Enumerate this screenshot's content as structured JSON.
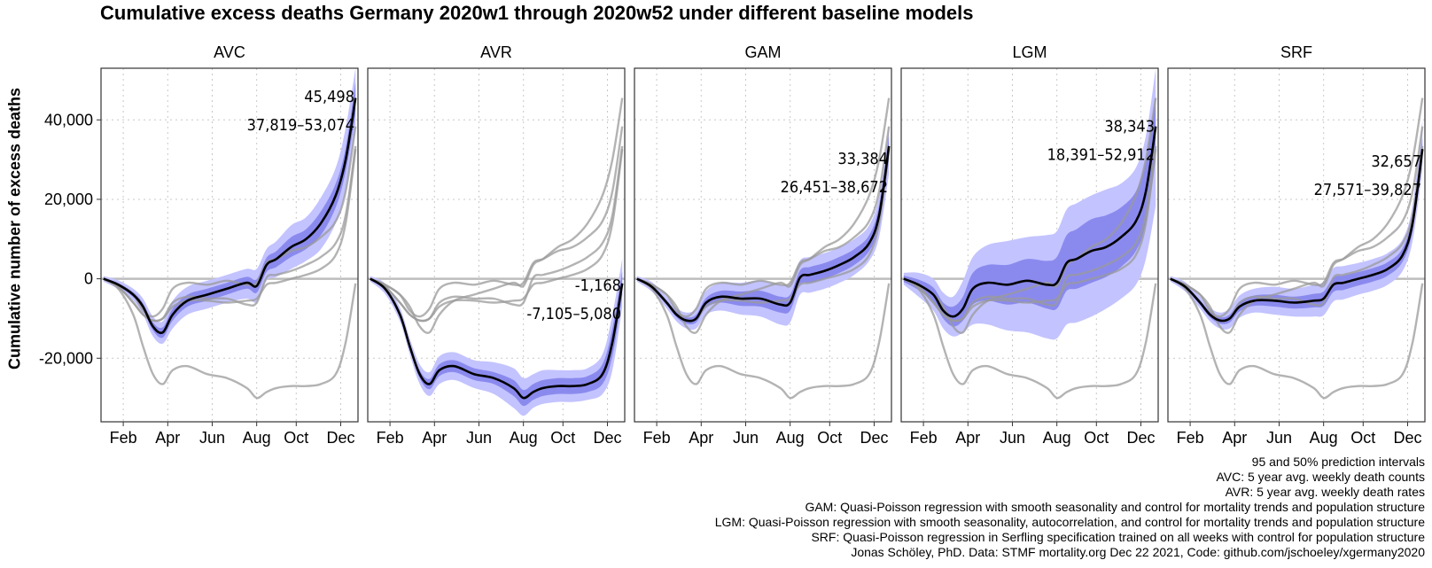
{
  "title": "Cumulative excess deaths Germany 2020w1 through 2020w52 under different baseline models",
  "ylabel": "Cumulative number of excess deaths",
  "caption": [
    "95 and 50% prediction intervals",
    "AVC: 5 year avg. weekly death counts",
    "AVR: 5 year avg. weekly death rates",
    "GAM: Quasi-Poisson regression with smooth seasonality and control for mortality trends and population structure",
    "LGM: Quasi-Poisson regression with smooth seasonality, autocorrelation, and control for mortality trends and population structure",
    "SRF: Quasi-Poisson regression in Serfling specification trained on all weeks with control for population structure",
    "Jonas Schöley, PhD. Data: STMF mortality.org Dec 22 2021, Code: github.com/jschoeley/xgermany2020"
  ],
  "colors": {
    "band95": "#c3c3ff",
    "band50": "#8a8aee",
    "main_line": "#000000",
    "other_lines": "#9a9a9a",
    "zero_line": "#bdbdbd",
    "grid": "#c8c8c8"
  },
  "chart_data": {
    "type": "line",
    "layout": "facets in one row, shared y axis",
    "x_unit": "week of 2020",
    "x_ticks": [
      {
        "label": "Feb",
        "week": 5
      },
      {
        "label": "Apr",
        "week": 14
      },
      {
        "label": "Jun",
        "week": 23
      },
      {
        "label": "Aug",
        "week": 32
      },
      {
        "label": "Oct",
        "week": 40
      },
      {
        "label": "Dec",
        "week": 49
      }
    ],
    "xlim": [
      0.5,
      52.5
    ],
    "ylim": [
      -36000,
      53000
    ],
    "y_ticks": [
      {
        "label": "40,000",
        "value": 40000
      },
      {
        "label": "20,000",
        "value": 20000
      },
      {
        "label": "0",
        "value": 0
      },
      {
        "label": "-20,000",
        "value": -20000
      }
    ],
    "grid": true,
    "reference_line": 0,
    "x_knots": [
      1,
      4,
      7,
      9,
      11,
      13,
      15,
      18,
      22,
      26,
      30,
      32,
      34,
      36,
      39,
      42,
      45,
      48,
      50,
      52
    ],
    "series": [
      {
        "name": "AVC",
        "annotation_value": "45,498",
        "annotation_interval": "37,819–53,074",
        "median": [
          0,
          -1500,
          -4000,
          -7000,
          -12000,
          -13500,
          -9000,
          -5500,
          -4000,
          -2500,
          -1000,
          -1800,
          3500,
          5000,
          8000,
          10000,
          14000,
          21000,
          30000,
          45498
        ],
        "lo50": [
          -300,
          -1900,
          -4600,
          -7800,
          -13000,
          -14800,
          -10500,
          -7000,
          -5500,
          -4000,
          -2500,
          -3500,
          1700,
          3000,
          5500,
          7500,
          11000,
          18000,
          27000,
          41500
        ],
        "hi50": [
          300,
          -1100,
          -3400,
          -6200,
          -11000,
          -12200,
          -7500,
          -4000,
          -2500,
          -1000,
          500,
          -100,
          5300,
          7000,
          10500,
          12500,
          17000,
          24000,
          33000,
          49500
        ],
        "lo95": [
          -700,
          -2600,
          -5500,
          -9000,
          -14500,
          -16300,
          -12500,
          -9000,
          -7500,
          -6000,
          -5000,
          -5800,
          -500,
          500,
          2500,
          4500,
          7500,
          14000,
          22000,
          37819
        ],
        "hi95": [
          700,
          -400,
          -2500,
          -5000,
          -9500,
          -10700,
          -5500,
          -2000,
          -500,
          1000,
          2500,
          2500,
          7500,
          9500,
          13500,
          15500,
          20500,
          28000,
          38000,
          53074
        ]
      },
      {
        "name": "AVR",
        "annotation_value": "-1,168",
        "annotation_interval": "-7,105–5,080",
        "median": [
          0,
          -2500,
          -9000,
          -17000,
          -24000,
          -26500,
          -23000,
          -22000,
          -24000,
          -25000,
          -27500,
          -30000,
          -28500,
          -27500,
          -27000,
          -27000,
          -26500,
          -24000,
          -16000,
          -1168
        ],
        "lo50": [
          -300,
          -3000,
          -9700,
          -17800,
          -25000,
          -27800,
          -24500,
          -23500,
          -25500,
          -26500,
          -29500,
          -32000,
          -30500,
          -29500,
          -29000,
          -29000,
          -28500,
          -26500,
          -19500,
          -4200
        ],
        "hi50": [
          300,
          -2000,
          -8300,
          -16200,
          -23000,
          -25200,
          -21500,
          -20500,
          -22500,
          -23500,
          -25500,
          -28000,
          -26500,
          -25500,
          -25000,
          -25000,
          -24500,
          -21500,
          -12500,
          1900
        ],
        "lo95": [
          -700,
          -3800,
          -10700,
          -19000,
          -26500,
          -29500,
          -26500,
          -25500,
          -27500,
          -29000,
          -32500,
          -34500,
          -32500,
          -31500,
          -31000,
          -31000,
          -30500,
          -29000,
          -23000,
          -7105
        ],
        "hi95": [
          700,
          -1200,
          -7300,
          -15000,
          -21500,
          -23500,
          -19500,
          -18500,
          -20500,
          -21000,
          -22500,
          -25000,
          -24000,
          -23000,
          -23000,
          -23000,
          -22500,
          -19000,
          -9000,
          5080
        ]
      },
      {
        "name": "GAM",
        "annotation_value": "33,384",
        "annotation_interval": "26,451–38,672",
        "median": [
          0,
          -2000,
          -6000,
          -9000,
          -10500,
          -10000,
          -6000,
          -4500,
          -5000,
          -5000,
          -6500,
          -6000,
          300,
          1000,
          2000,
          3500,
          5500,
          9000,
          16000,
          33384
        ],
        "lo50": [
          -300,
          -2500,
          -6600,
          -9700,
          -11300,
          -11000,
          -7200,
          -6000,
          -6800,
          -7000,
          -8500,
          -8000,
          -1500,
          -1000,
          0,
          1500,
          3500,
          7000,
          13500,
          30000
        ],
        "hi50": [
          300,
          -1500,
          -5400,
          -8300,
          -9700,
          -9000,
          -4800,
          -3000,
          -3200,
          -3000,
          -4500,
          -4000,
          2100,
          3000,
          4000,
          5500,
          7500,
          11000,
          18500,
          36000
        ],
        "lo95": [
          -700,
          -3200,
          -7500,
          -10700,
          -12500,
          -12500,
          -9000,
          -8000,
          -9000,
          -9500,
          -11500,
          -11000,
          -4000,
          -3500,
          -2500,
          -1000,
          1000,
          4500,
          10500,
          26451
        ],
        "hi95": [
          700,
          -800,
          -4500,
          -7300,
          -8500,
          -7500,
          -3000,
          -1000,
          -1000,
          -500,
          -1500,
          -1000,
          4600,
          5500,
          6500,
          8000,
          10000,
          13500,
          21000,
          38672
        ]
      },
      {
        "name": "LGM",
        "annotation_value": "38,343",
        "annotation_interval": "18,391–52,912",
        "median": [
          0,
          -1500,
          -4000,
          -8000,
          -9500,
          -7500,
          -2500,
          -1000,
          -1500,
          -500,
          -1500,
          -1000,
          4000,
          5000,
          7000,
          8000,
          10500,
          14500,
          22000,
          38343
        ],
        "lo50": [
          -800,
          -2800,
          -5800,
          -10000,
          -12000,
          -10500,
          -6500,
          -5500,
          -6500,
          -6000,
          -7500,
          -7500,
          -3000,
          -2500,
          -1000,
          500,
          3000,
          7000,
          14000,
          30000
        ],
        "hi50": [
          800,
          -200,
          -2200,
          -6000,
          -7000,
          -4500,
          1500,
          3500,
          3500,
          5000,
          4500,
          5500,
          11000,
          12500,
          15000,
          16000,
          18000,
          22000,
          30000,
          46000
        ],
        "lo95": [
          -1500,
          -4500,
          -8000,
          -12500,
          -14500,
          -13500,
          -11500,
          -11500,
          -13000,
          -13500,
          -15000,
          -15000,
          -11500,
          -11000,
          -9500,
          -7500,
          -5000,
          -1500,
          5000,
          18391
        ],
        "hi95": [
          1500,
          1500,
          0,
          -3500,
          -4500,
          -500,
          5500,
          8500,
          9500,
          10500,
          11000,
          12000,
          17500,
          19000,
          21000,
          22500,
          24000,
          28000,
          36000,
          52912
        ]
      },
      {
        "name": "SRF",
        "annotation_value": "32,657",
        "annotation_interval": "27,571–39,827",
        "median": [
          0,
          -2000,
          -6000,
          -9000,
          -10500,
          -10000,
          -7000,
          -5500,
          -5500,
          -6000,
          -5500,
          -5000,
          -1500,
          -1000,
          0,
          1000,
          2500,
          6000,
          14000,
          32657
        ],
        "lo50": [
          -300,
          -2500,
          -6600,
          -9700,
          -11300,
          -11000,
          -8200,
          -6800,
          -7000,
          -7500,
          -7200,
          -6800,
          -3300,
          -2800,
          -1700,
          -700,
          800,
          4300,
          12000,
          30000
        ],
        "hi50": [
          300,
          -1500,
          -5400,
          -8300,
          -9700,
          -9000,
          -5800,
          -4200,
          -4000,
          -4500,
          -3800,
          -3200,
          300,
          800,
          1700,
          2700,
          4200,
          7700,
          16000,
          35300
        ],
        "lo95": [
          -700,
          -3200,
          -7500,
          -10700,
          -12500,
          -12500,
          -9800,
          -8500,
          -9000,
          -9500,
          -9500,
          -9200,
          -5700,
          -5200,
          -4000,
          -3000,
          -1500,
          2000,
          9500,
          27571
        ],
        "hi95": [
          700,
          -800,
          -4500,
          -7300,
          -8500,
          -7500,
          -4200,
          -2500,
          -2000,
          -2500,
          -1500,
          -800,
          2700,
          3200,
          4000,
          5000,
          6500,
          10000,
          18500,
          39827
        ]
      }
    ]
  }
}
